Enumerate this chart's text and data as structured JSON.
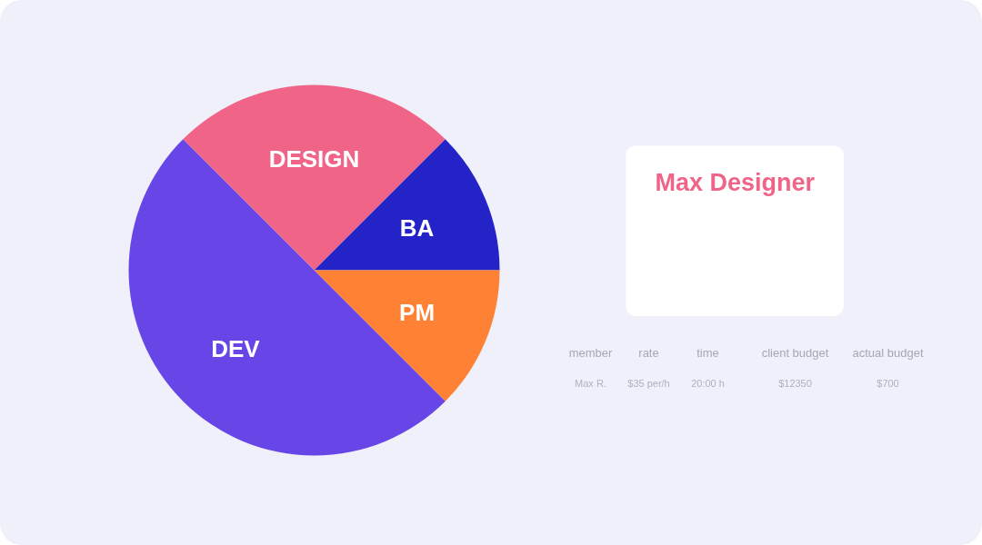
{
  "chart_data": [
    {
      "type": "pie",
      "categories": [
        "DESIGN",
        "BA",
        "PM",
        "DEV"
      ],
      "values": [
        25,
        12.5,
        12.5,
        50
      ],
      "colors": [
        "#f06488",
        "#2323c8",
        "#ff8133",
        "#6745e6"
      ]
    },
    {
      "type": "other",
      "title": "Max Designer",
      "annotations": [
        "member",
        "rate",
        "time",
        "client budget",
        "actual budget",
        "Max R.",
        "$35 per/h",
        "20:00 h",
        "$12350",
        "$700"
      ]
    }
  ]
}
